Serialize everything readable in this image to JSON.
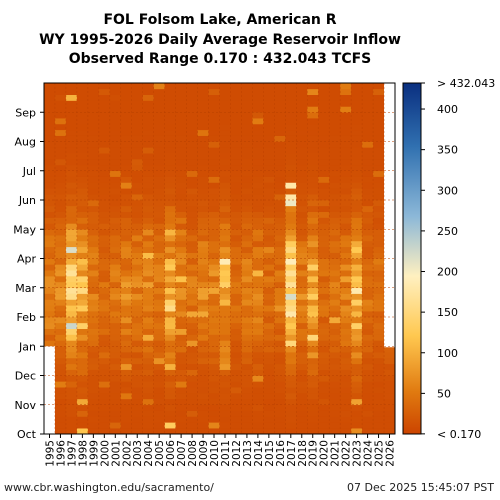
{
  "chart_data": {
    "type": "heatmap",
    "title": [
      "FOL Folsom Lake, American R",
      "WY 1995-2026 Daily Average Reservoir Inflow",
      "Observed Range 0.170 : 432.043 TCFS"
    ],
    "x": [
      "1995",
      "1996",
      "1997",
      "1998",
      "1999",
      "2000",
      "2001",
      "2002",
      "2003",
      "2004",
      "2005",
      "2006",
      "2007",
      "2008",
      "2009",
      "2010",
      "2011",
      "2012",
      "2013",
      "2014",
      "2015",
      "2016",
      "2017",
      "2018",
      "2019",
      "2020",
      "2021",
      "2022",
      "2023",
      "2024",
      "2025",
      "2026"
    ],
    "y_months": [
      "Oct",
      "Nov",
      "Dec",
      "Jan",
      "Feb",
      "Mar",
      "Apr",
      "May",
      "Jun",
      "Jul",
      "Aug",
      "Sep"
    ],
    "colorbar": {
      "ticks": [
        "< 0.170",
        "50",
        "100",
        "150",
        "200",
        "250",
        "300",
        "350",
        "400",
        "> 432.043"
      ],
      "tick_values": [
        0.17,
        50,
        100,
        150,
        200,
        250,
        300,
        350,
        400,
        432.043
      ],
      "range": [
        0.17,
        432.043
      ],
      "colors": [
        "#cc4400",
        "#e07a10",
        "#ffc850",
        "#fff0c0",
        "#8cb8d8",
        "#3070b0",
        "#0a2f80"
      ]
    },
    "wet_year_peaks": {
      "1997": 180,
      "1998": 140,
      "2006": 150,
      "2011": 120,
      "2017": 220,
      "2019": 140,
      "2023": 160
    },
    "missing": {
      "1995_before": "Jan",
      "2026_after": "Dec"
    }
  },
  "footer": {
    "left": "www.cbr.washington.edu/sacramento/",
    "right": "07 Dec 2025 15:45:07 PST"
  }
}
